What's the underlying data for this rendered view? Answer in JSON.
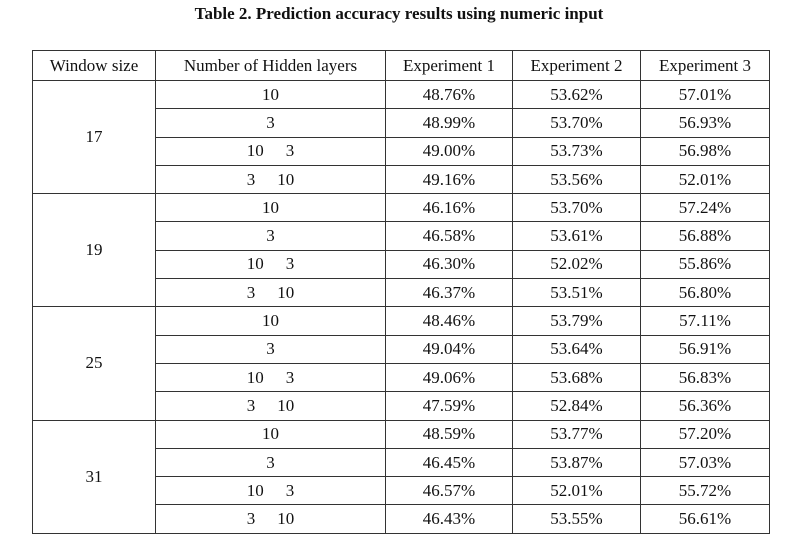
{
  "caption": "Table 2. Prediction accuracy results using numeric input",
  "headers": [
    "Window size",
    "Number of  Hidden layers",
    "Experiment 1",
    "Experiment 2",
    "Experiment 3"
  ],
  "groups": [
    {
      "window": "17",
      "rows": [
        {
          "layers": [
            "10"
          ],
          "e1": "48.76%",
          "e2": "53.62%",
          "e3": "57.01%",
          "bold": "e3"
        },
        {
          "layers": [
            "3"
          ],
          "e1": "48.99%",
          "e2": "53.70%",
          "e3": "56.93%",
          "bold": "e3"
        },
        {
          "layers": [
            "10",
            "3"
          ],
          "e1": "49.00%",
          "e2": "53.73%",
          "e3": "56.98%",
          "bold": "e3"
        },
        {
          "layers": [
            "3",
            "10"
          ],
          "e1": "49.16%",
          "e2": "53.56%",
          "e3": "52.01%",
          "bold": "e2"
        }
      ]
    },
    {
      "window": "19",
      "rows": [
        {
          "layers": [
            "10"
          ],
          "e1": "46.16%",
          "e2": "53.70%",
          "e3": "57.24%",
          "bold": "e3"
        },
        {
          "layers": [
            "3"
          ],
          "e1": "46.58%",
          "e2": "53.61%",
          "e3": "56.88%",
          "bold": "e3"
        },
        {
          "layers": [
            "10",
            "3"
          ],
          "e1": "46.30%",
          "e2": "52.02%",
          "e3": "55.86%",
          "bold": "e3"
        },
        {
          "layers": [
            "3",
            "10"
          ],
          "e1": "46.37%",
          "e2": "53.51%",
          "e3": "56.80%",
          "bold": "e3"
        }
      ]
    },
    {
      "window": "25",
      "rows": [
        {
          "layers": [
            "10"
          ],
          "e1": "48.46%",
          "e2": "53.79%",
          "e3": "57.11%",
          "bold": "e3"
        },
        {
          "layers": [
            "3"
          ],
          "e1": "49.04%",
          "e2": "53.64%",
          "e3": "56.91%",
          "bold": "e3"
        },
        {
          "layers": [
            "10",
            "3"
          ],
          "e1": "49.06%",
          "e2": "53.68%",
          "e3": "56.83%",
          "bold": "e3"
        },
        {
          "layers": [
            "3",
            "10"
          ],
          "e1": "47.59%",
          "e2": "52.84%",
          "e3": "56.36%",
          "bold": "e3"
        }
      ]
    },
    {
      "window": "31",
      "rows": [
        {
          "layers": [
            "10"
          ],
          "e1": "48.59%",
          "e2": "53.77%",
          "e3": "57.20%",
          "bold": "e3"
        },
        {
          "layers": [
            "3"
          ],
          "e1": "46.45%",
          "e2": "53.87%",
          "e3": "57.03%",
          "bold": "e3"
        },
        {
          "layers": [
            "10",
            "3"
          ],
          "e1": "46.57%",
          "e2": "52.01%",
          "e3": "55.72%",
          "bold": "e3"
        },
        {
          "layers": [
            "3",
            "10"
          ],
          "e1": "46.43%",
          "e2": "53.55%",
          "e3": "56.61%",
          "bold": "e3"
        }
      ]
    }
  ]
}
